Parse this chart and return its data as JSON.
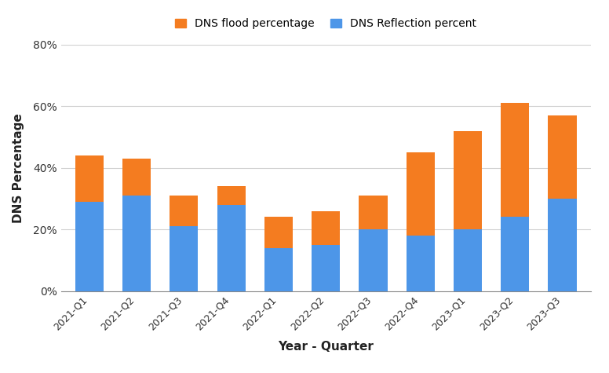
{
  "categories": [
    "2021-Q1",
    "2021-Q2",
    "2021-Q3",
    "2021-Q4",
    "2022-Q1",
    "2022-Q2",
    "2022-Q3",
    "2022-Q4",
    "2023-Q1",
    "2023-Q2",
    "2023-Q3"
  ],
  "dns_reflection": [
    29,
    31,
    21,
    28,
    14,
    15,
    20,
    18,
    20,
    24,
    30
  ],
  "dns_flood": [
    15,
    12,
    10,
    6,
    10,
    11,
    11,
    27,
    32,
    37,
    27
  ],
  "reflection_color": "#4d96e8",
  "flood_color": "#f47c20",
  "legend_labels": [
    "DNS flood percentage",
    "DNS Reflection percent"
  ],
  "xlabel": "Year - Quarter",
  "ylabel": "DNS Percentage",
  "ylim": [
    0,
    80
  ],
  "yticks": [
    0,
    20,
    40,
    60,
    80
  ],
  "ytick_labels": [
    "0%",
    "20%",
    "40%",
    "60%",
    "80%"
  ],
  "background_color": "#ffffff",
  "grid_color": "#d0d0d0",
  "bar_width": 0.6
}
